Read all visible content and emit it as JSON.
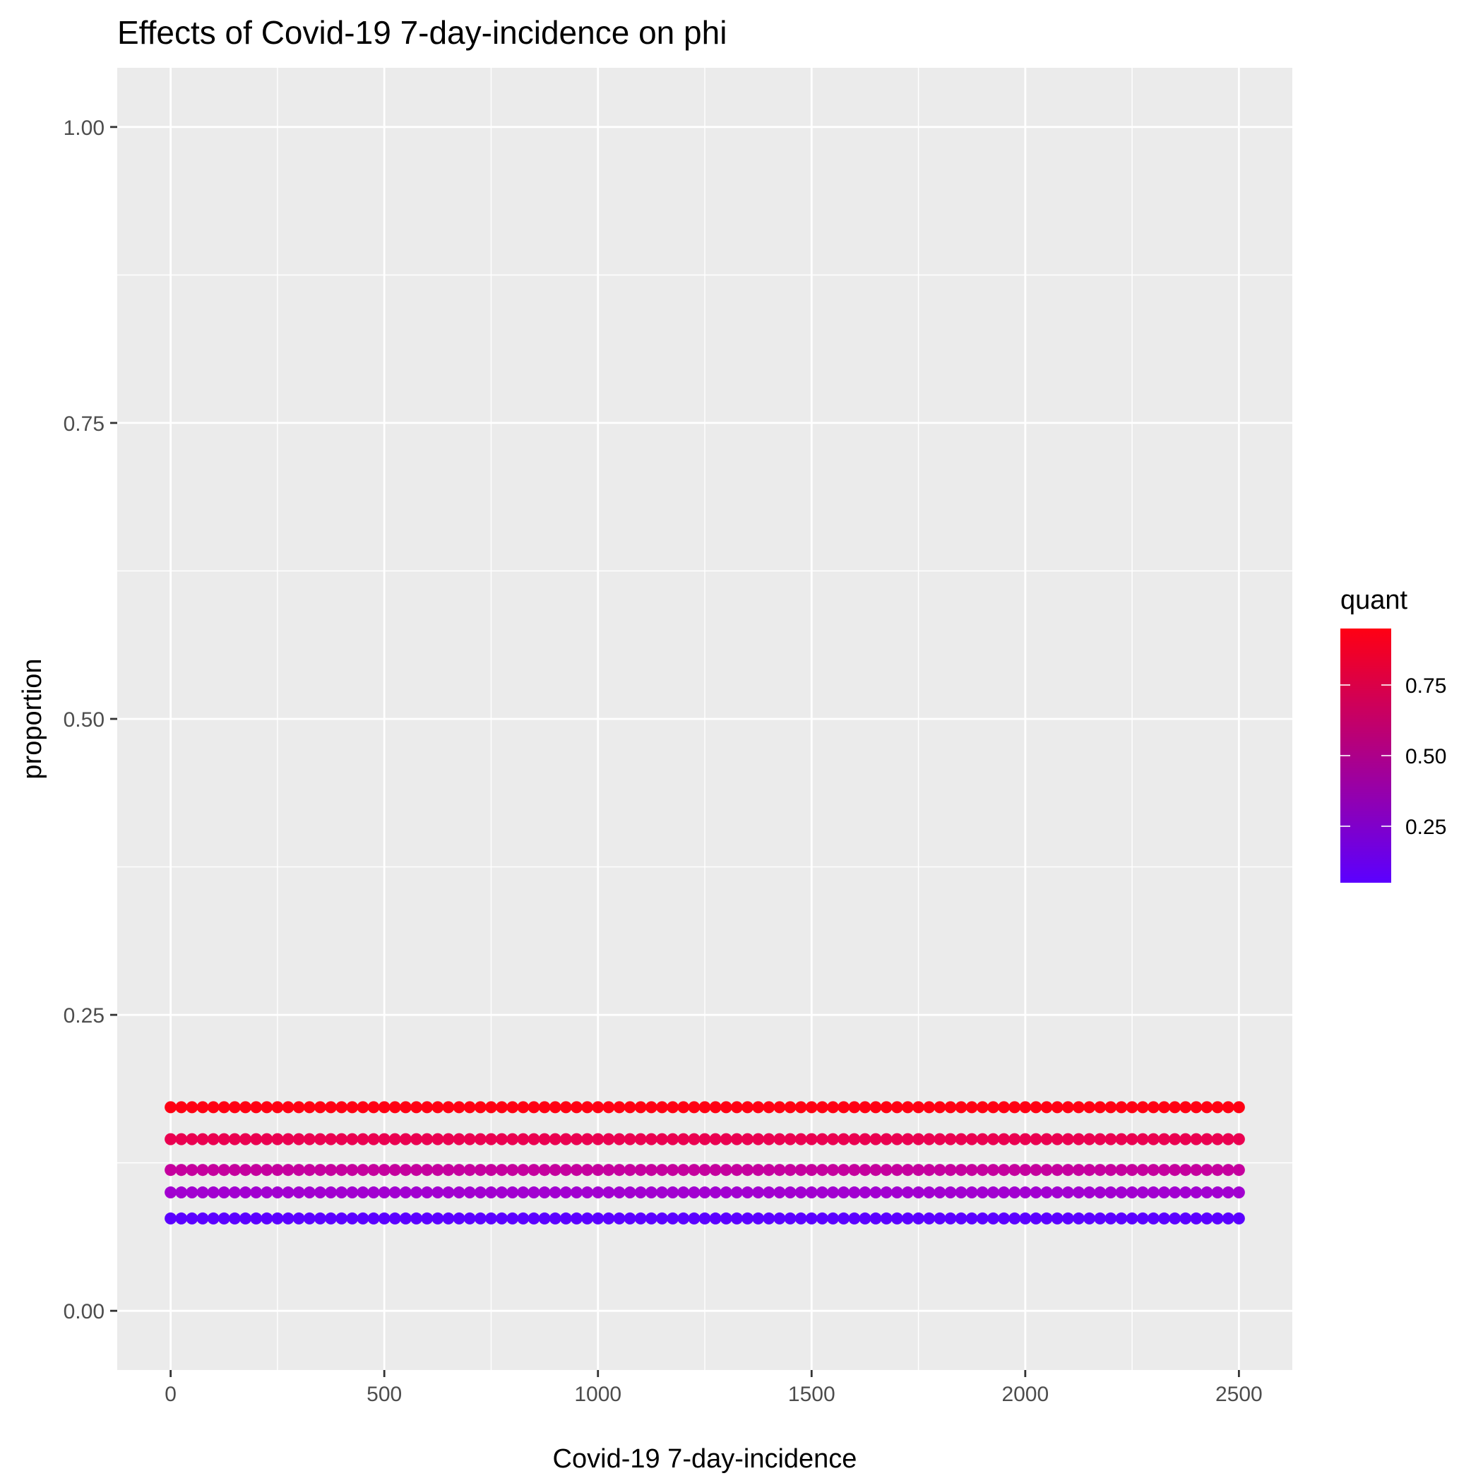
{
  "chart_data": {
    "type": "scatter",
    "title": "Effects of Covid-19 7-day-incidence on phi",
    "xlabel": "Covid-19 7-day-incidence",
    "ylabel": "proportion",
    "xlim": [
      -125,
      2625
    ],
    "ylim": [
      -0.05,
      1.05
    ],
    "x_ticks": [
      0,
      500,
      1000,
      1500,
      2000,
      2500
    ],
    "x_tick_labels": [
      "0",
      "500",
      "1000",
      "1500",
      "2000",
      "2500"
    ],
    "y_ticks": [
      0,
      0.25,
      0.5,
      0.75,
      1.0
    ],
    "y_tick_labels": [
      "0.00",
      "0.25",
      "0.50",
      "0.75",
      "1.00"
    ],
    "x_start": 0,
    "x_end": 2500,
    "x_step": 25,
    "grid": true,
    "background": "#ebebeb",
    "series": [
      {
        "quant": 0.05,
        "y": 0.078,
        "color": "#5b00ff"
      },
      {
        "quant": 0.25,
        "y": 0.1,
        "color": "#a200d0"
      },
      {
        "quant": 0.5,
        "y": 0.119,
        "color": "#c5009e"
      },
      {
        "quant": 0.75,
        "y": 0.145,
        "color": "#ea0050"
      },
      {
        "quant": 0.95,
        "y": 0.172,
        "color": "#ff0013"
      }
    ],
    "legend": {
      "title": "quant",
      "position": "right",
      "range": [
        0.05,
        0.95
      ],
      "low_color": "#5b00ff",
      "high_color": "#ff0013",
      "ticks": [
        0.25,
        0.5,
        0.75
      ],
      "tick_labels": [
        "0.25",
        "0.50",
        "0.75"
      ]
    }
  }
}
